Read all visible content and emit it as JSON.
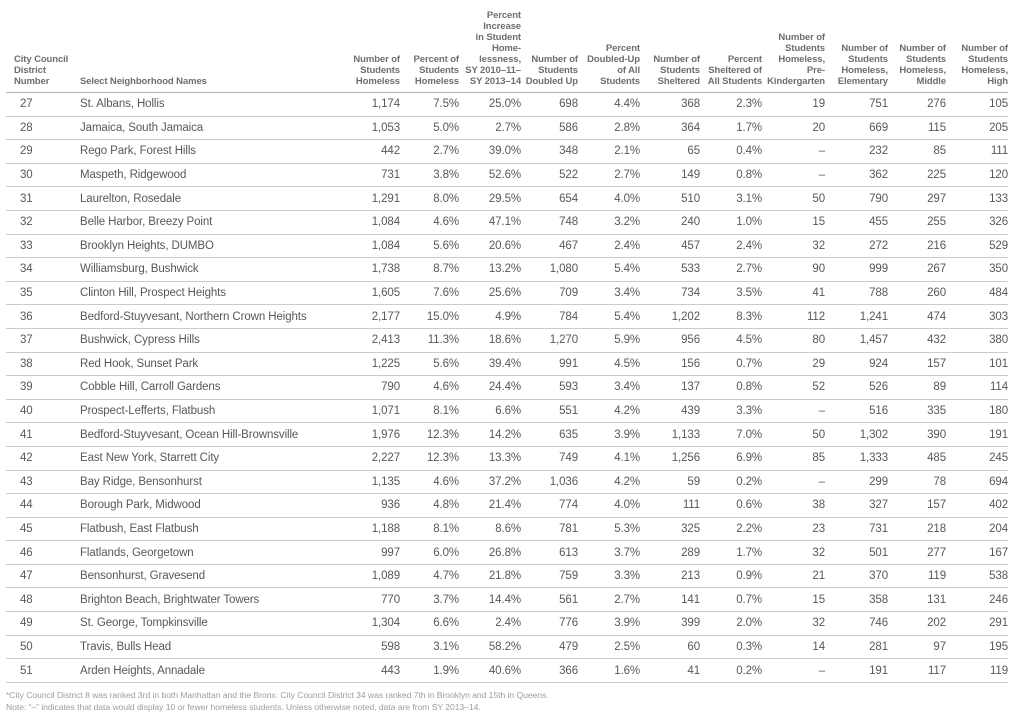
{
  "chart_data": {
    "type": "table",
    "columns": [
      "City Council\nDistrict Number",
      "Select Neighborhood Names",
      "Number of\nStudents\nHomeless",
      "Percent of\nStudents\nHomeless",
      "Percent\nIncrease\nin Student\nHome-\nlessness,\nSY 2010–11–\nSY 2013–14",
      "Number of\nStudents\nDoubled Up",
      "Percent\nDoubled-Up\nof All\nStudents",
      "Number of\nStudents\nSheltered",
      "Percent\nSheltered of\nAll Students",
      "Number of\nStudents\nHomeless,\nPre-\nKindergarten",
      "Number of\nStudents\nHomeless,\nElementary",
      "Number of\nStudents\nHomeless,\nMiddle",
      "Number of\nStudents\nHomeless,\nHigh"
    ],
    "rows": [
      [
        "27",
        "St. Albans, Hollis",
        "1,174",
        "7.5%",
        "25.0%",
        "698",
        "4.4%",
        "368",
        "2.3%",
        "19",
        "751",
        "276",
        "105"
      ],
      [
        "28",
        "Jamaica, South Jamaica",
        "1,053",
        "5.0%",
        "2.7%",
        "586",
        "2.8%",
        "364",
        "1.7%",
        "20",
        "669",
        "115",
        "205"
      ],
      [
        "29",
        "Rego Park, Forest Hills",
        "442",
        "2.7%",
        "39.0%",
        "348",
        "2.1%",
        "65",
        "0.4%",
        "–",
        "232",
        "85",
        "111"
      ],
      [
        "30",
        "Maspeth, Ridgewood",
        "731",
        "3.8%",
        "52.6%",
        "522",
        "2.7%",
        "149",
        "0.8%",
        "–",
        "362",
        "225",
        "120"
      ],
      [
        "31",
        "Laurelton, Rosedale",
        "1,291",
        "8.0%",
        "29.5%",
        "654",
        "4.0%",
        "510",
        "3.1%",
        "50",
        "790",
        "297",
        "133"
      ],
      [
        "32",
        "Belle Harbor, Breezy Point",
        "1,084",
        "4.6%",
        "47.1%",
        "748",
        "3.2%",
        "240",
        "1.0%",
        "15",
        "455",
        "255",
        "326"
      ],
      [
        "33",
        "Brooklyn Heights, DUMBO",
        "1,084",
        "5.6%",
        "20.6%",
        "467",
        "2.4%",
        "457",
        "2.4%",
        "32",
        "272",
        "216",
        "529"
      ],
      [
        "34",
        "Williamsburg, Bushwick",
        "1,738",
        "8.7%",
        "13.2%",
        "1,080",
        "5.4%",
        "533",
        "2.7%",
        "90",
        "999",
        "267",
        "350"
      ],
      [
        "35",
        "Clinton Hill, Prospect Heights",
        "1,605",
        "7.6%",
        "25.6%",
        "709",
        "3.4%",
        "734",
        "3.5%",
        "41",
        "788",
        "260",
        "484"
      ],
      [
        "36",
        "Bedford-Stuyvesant, Northern Crown Heights",
        "2,177",
        "15.0%",
        "4.9%",
        "784",
        "5.4%",
        "1,202",
        "8.3%",
        "112",
        "1,241",
        "474",
        "303"
      ],
      [
        "37",
        "Bushwick, Cypress Hills",
        "2,413",
        "11.3%",
        "18.6%",
        "1,270",
        "5.9%",
        "956",
        "4.5%",
        "80",
        "1,457",
        "432",
        "380"
      ],
      [
        "38",
        "Red Hook, Sunset Park",
        "1,225",
        "5.6%",
        "39.4%",
        "991",
        "4.5%",
        "156",
        "0.7%",
        "29",
        "924",
        "157",
        "101"
      ],
      [
        "39",
        "Cobble Hill, Carroll Gardens",
        "790",
        "4.6%",
        "24.4%",
        "593",
        "3.4%",
        "137",
        "0.8%",
        "52",
        "526",
        "89",
        "114"
      ],
      [
        "40",
        "Prospect-Lefferts, Flatbush",
        "1,071",
        "8.1%",
        "6.6%",
        "551",
        "4.2%",
        "439",
        "3.3%",
        "–",
        "516",
        "335",
        "180"
      ],
      [
        "41",
        "Bedford-Stuyvesant, Ocean Hill-Brownsville",
        "1,976",
        "12.3%",
        "14.2%",
        "635",
        "3.9%",
        "1,133",
        "7.0%",
        "50",
        "1,302",
        "390",
        "191"
      ],
      [
        "42",
        "East New York, Starrett City",
        "2,227",
        "12.3%",
        "13.3%",
        "749",
        "4.1%",
        "1,256",
        "6.9%",
        "85",
        "1,333",
        "485",
        "245"
      ],
      [
        "43",
        "Bay Ridge, Bensonhurst",
        "1,135",
        "4.6%",
        "37.2%",
        "1,036",
        "4.2%",
        "59",
        "0.2%",
        "–",
        "299",
        "78",
        "694"
      ],
      [
        "44",
        "Borough Park, Midwood",
        "936",
        "4.8%",
        "21.4%",
        "774",
        "4.0%",
        "111",
        "0.6%",
        "38",
        "327",
        "157",
        "402"
      ],
      [
        "45",
        "Flatbush, East Flatbush",
        "1,188",
        "8.1%",
        "8.6%",
        "781",
        "5.3%",
        "325",
        "2.2%",
        "23",
        "731",
        "218",
        "204"
      ],
      [
        "46",
        "Flatlands, Georgetown",
        "997",
        "6.0%",
        "26.8%",
        "613",
        "3.7%",
        "289",
        "1.7%",
        "32",
        "501",
        "277",
        "167"
      ],
      [
        "47",
        "Bensonhurst, Gravesend",
        "1,089",
        "4.7%",
        "21.8%",
        "759",
        "3.3%",
        "213",
        "0.9%",
        "21",
        "370",
        "119",
        "538"
      ],
      [
        "48",
        "Brighton Beach, Brightwater Towers",
        "770",
        "3.7%",
        "14.4%",
        "561",
        "2.7%",
        "141",
        "0.7%",
        "15",
        "358",
        "131",
        "246"
      ],
      [
        "49",
        "St. George, Tompkinsville",
        "1,304",
        "6.6%",
        "2.4%",
        "776",
        "3.9%",
        "399",
        "2.0%",
        "32",
        "746",
        "202",
        "291"
      ],
      [
        "50",
        "Travis, Bulls Head",
        "598",
        "3.1%",
        "58.2%",
        "479",
        "2.5%",
        "60",
        "0.3%",
        "14",
        "281",
        "97",
        "195"
      ],
      [
        "51",
        "Arden Heights, Annadale",
        "443",
        "1.9%",
        "40.6%",
        "366",
        "1.6%",
        "41",
        "0.2%",
        "–",
        "191",
        "117",
        "119"
      ]
    ]
  },
  "footnotes": {
    "ranking_note": "*City Council District 8 was ranked 3rd in both Manhattan and the Bronx. City Council District 34 was ranked 7th in Brooklyn and 15th in Queens.",
    "data_note": "Note: “–” indicates that data would display 10 or fewer homeless students. Unless otherwise noted, data are from SY 2013–14."
  },
  "colors": {
    "text": "#57585a",
    "header_text": "#6d6e71",
    "row_line": "#c9cbcd",
    "header_line": "#b2b4b6",
    "footnote_text": "#9b9da0"
  }
}
